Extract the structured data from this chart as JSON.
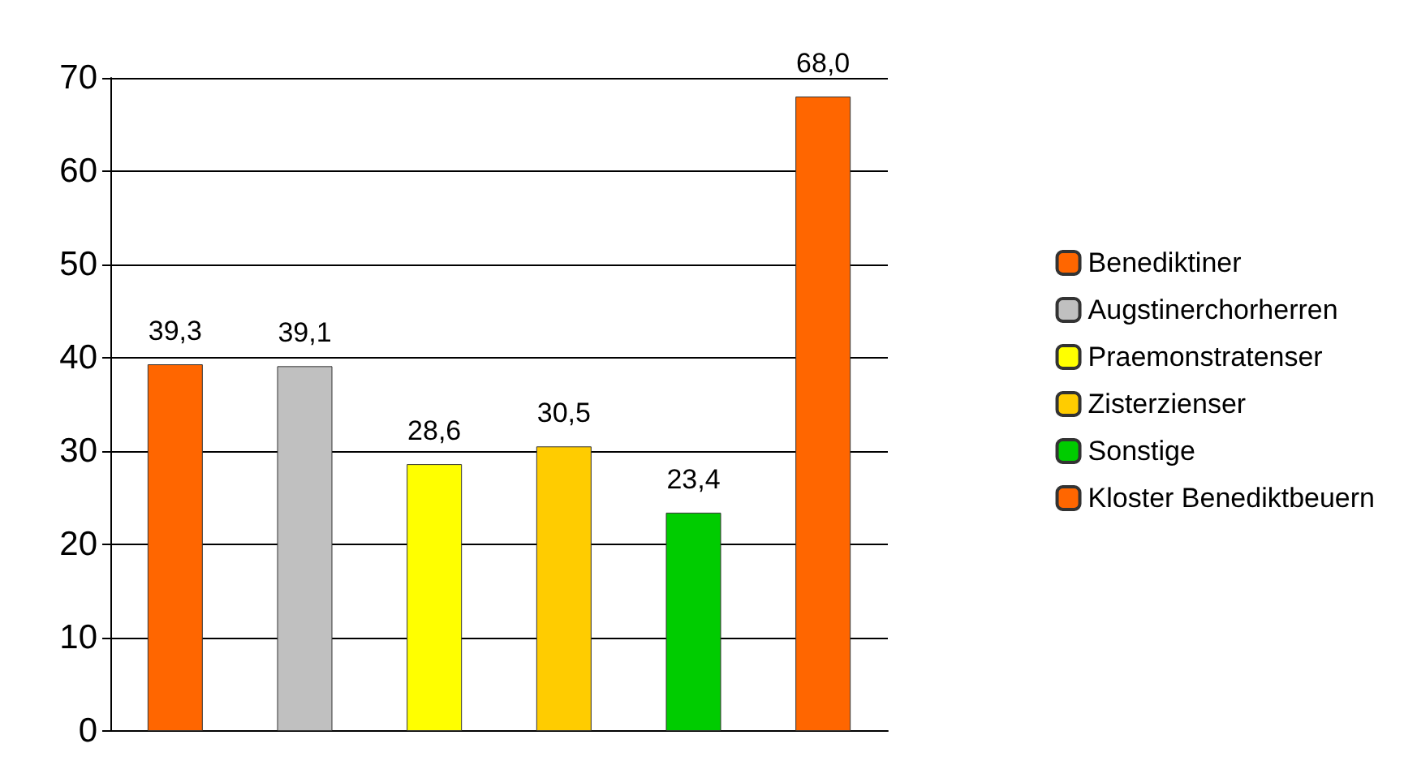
{
  "chart_data": {
    "type": "bar",
    "categories": [
      null,
      null,
      null,
      null,
      null,
      null
    ],
    "series": [
      {
        "name": "Benediktiner",
        "color": "#ff6600",
        "values": [
          39.3,
          null,
          null,
          null,
          null,
          null
        ],
        "value_labels": [
          "39,3",
          null,
          null,
          null,
          null,
          null
        ]
      },
      {
        "name": "Augstinerchorherren",
        "color": "#c0c0c0",
        "values": [
          null,
          39.1,
          null,
          null,
          null,
          null
        ],
        "value_labels": [
          null,
          "39,1",
          null,
          null,
          null,
          null
        ]
      },
      {
        "name": "Praemonstratenser",
        "color": "#ffff00",
        "values": [
          null,
          null,
          28.6,
          null,
          null,
          null
        ],
        "value_labels": [
          null,
          null,
          "28,6",
          null,
          null,
          null
        ]
      },
      {
        "name": "Zisterzienser",
        "color": "#ffcc00",
        "values": [
          null,
          null,
          null,
          30.5,
          null,
          null
        ],
        "value_labels": [
          null,
          null,
          null,
          "30,5",
          null,
          null
        ]
      },
      {
        "name": "Sonstige",
        "color": "#00cc00",
        "values": [
          null,
          null,
          null,
          null,
          23.4,
          null
        ],
        "value_labels": [
          null,
          null,
          null,
          null,
          "23,4",
          null
        ]
      },
      {
        "name": "Kloster Benediktbeuern",
        "color": "#ff6600",
        "values": [
          null,
          null,
          null,
          null,
          null,
          68.0
        ],
        "value_labels": [
          null,
          null,
          null,
          null,
          null,
          "68,0"
        ]
      }
    ],
    "ylim": [
      0,
      70
    ],
    "yticks": [
      0,
      10,
      20,
      30,
      40,
      50,
      60,
      70
    ],
    "grid": "y",
    "legend": "right"
  }
}
